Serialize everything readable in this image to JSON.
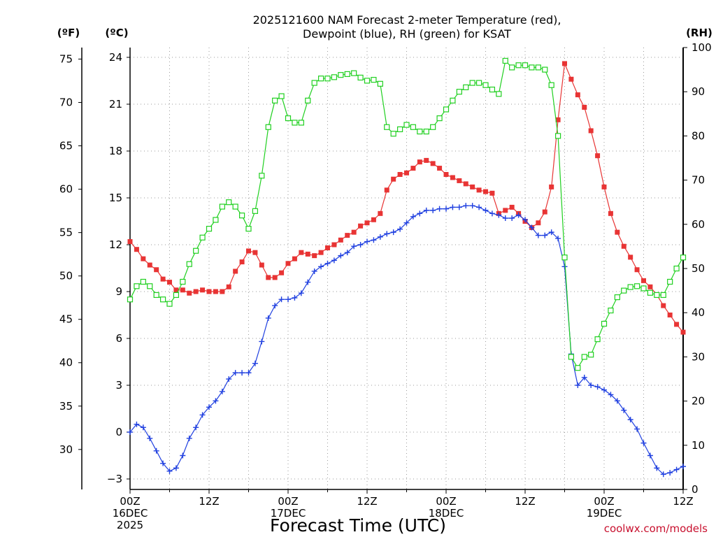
{
  "chart_data": {
    "type": "line",
    "title_lines": [
      "2025121600 NAM Forecast 2-meter Temperature (red),",
      "Dewpoint (blue), RH (green) for KSAT"
    ],
    "xlabel": "Forecast Time (UTC)",
    "credit": "coolwx.com/models",
    "units": {
      "fahrenheit": "(ºF)",
      "celsius": "(ºC)",
      "rh": "(RH)"
    },
    "x_step_hours": 1,
    "x_range_hours": [
      0,
      84
    ],
    "x_ticks": [
      {
        "hour": 0,
        "lines": [
          "00Z",
          "16DEC",
          "2025"
        ]
      },
      {
        "hour": 12,
        "lines": [
          "12Z"
        ]
      },
      {
        "hour": 24,
        "lines": [
          "00Z",
          "17DEC"
        ]
      },
      {
        "hour": 36,
        "lines": [
          "12Z"
        ]
      },
      {
        "hour": 48,
        "lines": [
          "00Z",
          "18DEC"
        ]
      },
      {
        "hour": 60,
        "lines": [
          "12Z"
        ]
      },
      {
        "hour": 72,
        "lines": [
          "00Z",
          "19DEC"
        ]
      },
      {
        "hour": 84,
        "lines": [
          "12Z"
        ]
      }
    ],
    "y_celsius": {
      "range": [
        -4,
        24.4
      ],
      "ticks": [
        -3,
        0,
        3,
        6,
        9,
        12,
        15,
        18,
        21,
        24
      ]
    },
    "y_fahrenheit": {
      "ticks": [
        30,
        35,
        40,
        45,
        50,
        55,
        60,
        65,
        70,
        75
      ]
    },
    "y_rh": {
      "range": [
        0,
        100
      ],
      "ticks": [
        0,
        10,
        20,
        30,
        40,
        50,
        60,
        70,
        80,
        90,
        100
      ]
    },
    "grid": true,
    "series": [
      {
        "name": "Temperature",
        "unit": "C",
        "color": "#e83434",
        "marker": "filled-square",
        "values": [
          12.2,
          11.7,
          11.1,
          10.7,
          10.4,
          9.8,
          9.6,
          9.1,
          9.1,
          8.9,
          9.0,
          9.1,
          9.0,
          9.0,
          9.0,
          9.3,
          10.3,
          10.9,
          11.6,
          11.5,
          10.7,
          9.9,
          9.9,
          10.2,
          10.8,
          11.1,
          11.5,
          11.4,
          11.3,
          11.5,
          11.8,
          12.0,
          12.3,
          12.6,
          12.8,
          13.2,
          13.4,
          13.6,
          14.0,
          15.5,
          16.2,
          16.5,
          16.6,
          16.9,
          17.3,
          17.4,
          17.2,
          16.9,
          16.5,
          16.3,
          16.1,
          15.9,
          15.7,
          15.5,
          15.4,
          15.3,
          14.0,
          14.2,
          14.4,
          14.0,
          13.5,
          13.1,
          13.4,
          14.1,
          15.7,
          20.0,
          23.6,
          22.6,
          21.6,
          20.8,
          19.3,
          17.7,
          15.7,
          14.0,
          12.8,
          11.9,
          11.2,
          10.4,
          9.7,
          9.3,
          8.8,
          8.1,
          7.5,
          6.9,
          6.4
        ]
      },
      {
        "name": "Dewpoint",
        "unit": "C",
        "color": "#2040e0",
        "marker": "plus",
        "values": [
          0.0,
          0.5,
          0.3,
          -0.4,
          -1.2,
          -2.0,
          -2.5,
          -2.3,
          -1.5,
          -0.4,
          0.3,
          1.1,
          1.6,
          2.0,
          2.6,
          3.4,
          3.8,
          3.8,
          3.8,
          4.4,
          5.8,
          7.3,
          8.1,
          8.5,
          8.5,
          8.6,
          8.9,
          9.6,
          10.3,
          10.6,
          10.8,
          11.0,
          11.3,
          11.5,
          11.9,
          12.0,
          12.2,
          12.3,
          12.5,
          12.7,
          12.8,
          13.0,
          13.4,
          13.8,
          14.0,
          14.2,
          14.2,
          14.3,
          14.3,
          14.4,
          14.4,
          14.5,
          14.5,
          14.4,
          14.2,
          14.0,
          13.9,
          13.7,
          13.7,
          13.9,
          13.6,
          13.1,
          12.6,
          12.6,
          12.8,
          12.4,
          10.6,
          5.0,
          3.0,
          3.5,
          3.0,
          2.9,
          2.7,
          2.4,
          2.0,
          1.4,
          0.8,
          0.2,
          -0.7,
          -1.5,
          -2.3,
          -2.7,
          -2.6,
          -2.4,
          -2.2
        ]
      },
      {
        "name": "RH",
        "unit": "%",
        "color": "#20d020",
        "marker": "open-square",
        "values": [
          43.0,
          46.0,
          47.0,
          46.0,
          44.0,
          43.0,
          42.0,
          44.0,
          47.0,
          51.0,
          54.0,
          57.0,
          59.0,
          61.0,
          64.0,
          65.0,
          64.0,
          62.0,
          59.0,
          63.0,
          71.0,
          82.0,
          88.0,
          89.0,
          84.0,
          83.0,
          83.0,
          88.0,
          92.0,
          93.0,
          93.0,
          93.3,
          93.8,
          94.0,
          94.2,
          93.2,
          92.5,
          92.7,
          91.8,
          82.0,
          80.5,
          81.5,
          82.5,
          82.0,
          81.0,
          81.0,
          82.0,
          84.0,
          86.0,
          88.0,
          90.0,
          91.0,
          92.0,
          92.0,
          91.5,
          90.5,
          89.5,
          97.0,
          95.5,
          96.0,
          96.0,
          95.5,
          95.5,
          95.0,
          91.5,
          80.0,
          52.5,
          30.0,
          27.5,
          30.0,
          30.5,
          34.0,
          37.5,
          40.5,
          43.5,
          45.0,
          45.8,
          46.0,
          45.5,
          44.5,
          44.0,
          44.0,
          47.0,
          50.0,
          52.5
        ]
      }
    ]
  }
}
